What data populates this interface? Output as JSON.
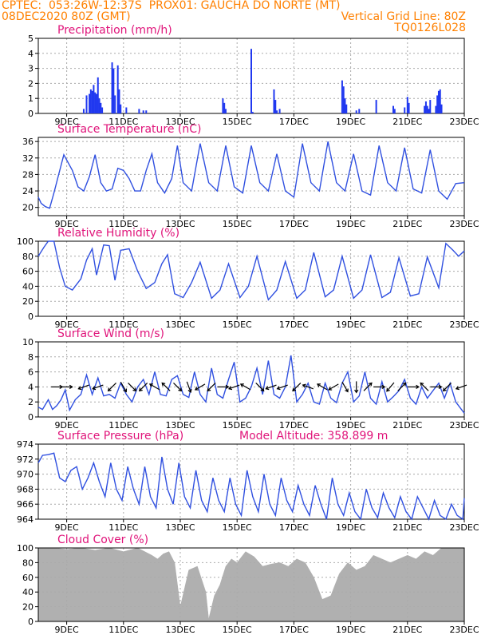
{
  "header": {
    "line1_left": "CPTEC:  053:26W-12:37S  PROX01: GAUCHA DO NORTE (MT)",
    "line2_left": "08DEC2020 80Z (GMT)",
    "line2_right": "Vertical Grid Line: 80Z",
    "line3_right": "TQ0126L028"
  },
  "colors": {
    "header": "#ff8000",
    "title": "#e0147a",
    "line": "#3050e0",
    "bar": "#2038f0",
    "cloud": "#b0b0b0",
    "grid": "#aaaaaa"
  },
  "x_axis": {
    "start": "2020-12-08T08:00Z",
    "end": "2020-12-23T00:00Z",
    "tick_labels": [
      "9DEC",
      "11DEC",
      "13DEC",
      "15DEC",
      "17DEC",
      "19DEC",
      "21DEC",
      "23DEC"
    ],
    "tick_days": [
      1,
      3,
      5,
      7,
      9,
      11,
      13,
      15
    ]
  },
  "chart_data": [
    {
      "id": "precip",
      "type": "bar",
      "title": "Precipitation (mm/h)",
      "ylim": [
        0,
        5
      ],
      "yticks": [
        0,
        1,
        2,
        3,
        4,
        5
      ],
      "x_days": [
        1.6,
        1.7,
        1.8,
        1.85,
        1.9,
        1.95,
        2.0,
        2.05,
        2.1,
        2.15,
        2.2,
        2.25,
        2.6,
        2.65,
        2.7,
        2.8,
        2.85,
        2.9,
        3.1,
        3.55,
        3.7,
        3.8,
        6.5,
        6.55,
        6.6,
        7.5,
        7.55,
        8.3,
        8.35,
        8.4,
        8.5,
        10.7,
        10.75,
        10.8,
        10.85,
        11.2,
        11.3,
        11.9,
        12.5,
        12.55,
        12.9,
        13.0,
        13.05,
        13.6,
        13.65,
        13.7,
        13.75,
        13.8,
        14.0,
        14.05,
        14.1,
        14.15,
        14.2
      ],
      "values": [
        0.3,
        1.2,
        1.3,
        1.6,
        1.5,
        1.9,
        1.4,
        1.3,
        2.4,
        1.0,
        0.7,
        0.4,
        3.4,
        3.0,
        1.2,
        3.2,
        1.6,
        0.6,
        0.4,
        0.3,
        0.2,
        0.2,
        1.0,
        0.7,
        0.3,
        4.3,
        0.1,
        1.6,
        0.9,
        0.2,
        0.3,
        2.2,
        1.8,
        1.0,
        0.6,
        0.2,
        0.3,
        0.9,
        0.5,
        0.3,
        0.4,
        1.1,
        0.7,
        0.5,
        0.8,
        0.5,
        0.3,
        0.9,
        0.5,
        1.2,
        1.5,
        1.6,
        0.6
      ]
    },
    {
      "id": "temp",
      "type": "line",
      "title": "Surface Temperature (nC)",
      "ylim": [
        18,
        37
      ],
      "yticks": [
        20,
        24,
        28,
        32,
        36
      ],
      "x_days": [
        0,
        0.1,
        0.25,
        0.4,
        0.55,
        0.7,
        0.9,
        1.2,
        1.4,
        1.6,
        1.8,
        2.0,
        2.2,
        2.4,
        2.6,
        2.8,
        3.0,
        3.2,
        3.4,
        3.6,
        3.8,
        4.0,
        4.2,
        4.45,
        4.7,
        4.9,
        5.1,
        5.4,
        5.7,
        6.0,
        6.3,
        6.6,
        6.9,
        7.2,
        7.5,
        7.8,
        8.1,
        8.4,
        8.7,
        9.0,
        9.3,
        9.6,
        9.9,
        10.2,
        10.5,
        10.8,
        11.1,
        11.4,
        11.7,
        12.0,
        12.3,
        12.6,
        12.9,
        13.2,
        13.5,
        13.8,
        14.1,
        14.4,
        14.7,
        15.0
      ],
      "values": [
        22.5,
        21.0,
        20.2,
        19.8,
        23.5,
        27.5,
        32.8,
        29.0,
        25.0,
        24.0,
        27.5,
        32.8,
        26.0,
        24.0,
        24.5,
        29.5,
        29.0,
        27.0,
        24.0,
        24.0,
        29.0,
        33.0,
        26.0,
        23.5,
        27.0,
        35.0,
        26.0,
        24.0,
        35.5,
        26.0,
        24.0,
        35.0,
        25.0,
        23.5,
        35.0,
        26.0,
        24.0,
        33.0,
        24.0,
        22.5,
        35.5,
        26.0,
        24.0,
        36.0,
        26.0,
        24.0,
        33.0,
        24.0,
        23.0,
        35.0,
        26.0,
        24.0,
        34.5,
        24.5,
        23.5,
        34.0,
        24.0,
        22.0,
        25.8,
        26.0
      ]
    },
    {
      "id": "rh",
      "type": "line",
      "title": "Relative Humidity (%)",
      "ylim": [
        0,
        100
      ],
      "yticks": [
        0,
        20,
        40,
        60,
        80,
        100
      ],
      "x_days": [
        0,
        0.2,
        0.35,
        0.55,
        0.75,
        0.95,
        1.2,
        1.5,
        1.7,
        1.9,
        2.05,
        2.3,
        2.5,
        2.7,
        2.9,
        3.2,
        3.5,
        3.8,
        4.1,
        4.35,
        4.55,
        4.8,
        5.1,
        5.4,
        5.7,
        6.1,
        6.4,
        6.7,
        7.1,
        7.4,
        7.7,
        8.1,
        8.4,
        8.7,
        9.1,
        9.4,
        9.7,
        10.1,
        10.4,
        10.7,
        11.1,
        11.4,
        11.7,
        12.1,
        12.4,
        12.7,
        13.1,
        13.4,
        13.7,
        14.1,
        14.35,
        14.6,
        14.8,
        15.0
      ],
      "values": [
        80,
        92,
        100,
        100,
        65,
        40,
        35,
        50,
        75,
        90,
        55,
        95,
        94,
        48,
        88,
        90,
        60,
        37,
        45,
        70,
        82,
        30,
        25,
        45,
        72,
        24,
        35,
        70,
        25,
        40,
        80,
        22,
        35,
        73,
        24,
        35,
        85,
        26,
        35,
        80,
        24,
        35,
        82,
        25,
        32,
        78,
        27,
        30,
        79,
        38,
        97,
        88,
        80,
        87
      ]
    },
    {
      "id": "wind",
      "type": "line",
      "title": "Surface Wind (m/s)",
      "ylim": [
        0,
        10
      ],
      "yticks": [
        0,
        2,
        4,
        6,
        8,
        10
      ],
      "x_days": [
        0,
        0.15,
        0.35,
        0.5,
        0.65,
        0.8,
        0.95,
        1.1,
        1.3,
        1.5,
        1.7,
        1.9,
        2.1,
        2.3,
        2.5,
        2.7,
        2.9,
        3.1,
        3.3,
        3.5,
        3.7,
        3.9,
        4.1,
        4.3,
        4.5,
        4.7,
        4.9,
        5.1,
        5.3,
        5.5,
        5.7,
        5.9,
        6.1,
        6.3,
        6.5,
        6.7,
        6.9,
        7.1,
        7.3,
        7.5,
        7.7,
        7.9,
        8.1,
        8.3,
        8.5,
        8.7,
        8.9,
        9.1,
        9.3,
        9.5,
        9.7,
        9.9,
        10.1,
        10.3,
        10.5,
        10.7,
        10.9,
        11.1,
        11.3,
        11.5,
        11.7,
        11.9,
        12.1,
        12.3,
        12.5,
        12.7,
        12.9,
        13.1,
        13.3,
        13.5,
        13.7,
        13.9,
        14.1,
        14.3,
        14.5,
        14.7,
        14.9,
        15.0
      ],
      "values": [
        1.3,
        1.0,
        2.3,
        1.0,
        1.5,
        2.3,
        3.6,
        0.9,
        2.3,
        3.0,
        5.6,
        3.0,
        5.2,
        2.8,
        3.0,
        2.5,
        4.5,
        3.0,
        2.0,
        4.0,
        5.0,
        3.0,
        6.0,
        3.0,
        2.8,
        5.0,
        5.5,
        3.0,
        2.6,
        6.0,
        3.0,
        2.0,
        6.5,
        3.0,
        2.5,
        5.0,
        7.3,
        2.0,
        2.5,
        4.0,
        6.5,
        3.0,
        7.5,
        3.0,
        2.5,
        4.0,
        8.2,
        2.0,
        3.0,
        4.5,
        2.0,
        1.7,
        4.5,
        2.5,
        1.9,
        4.5,
        6.0,
        2.0,
        2.8,
        6.0,
        2.5,
        1.7,
        4.7,
        2.0,
        2.7,
        3.5,
        5.0,
        2.5,
        1.7,
        4.0,
        2.5,
        3.5,
        4.5,
        2.5,
        4.5,
        2.0,
        1.0,
        0.5
      ],
      "arrow_days": [
        0.65,
        1.0,
        1.6,
        2.1,
        2.6,
        3.0,
        3.3,
        3.7,
        4.1,
        4.5,
        4.9,
        5.3,
        5.7,
        6.1,
        6.5,
        6.9,
        7.3,
        7.8,
        8.2,
        8.6,
        9.1,
        9.5,
        10.0,
        10.4,
        10.8,
        11.2,
        11.6,
        12.0,
        12.4,
        12.8,
        13.2,
        13.6,
        14.0,
        14.4,
        14.9
      ],
      "arrow_angles": [
        0,
        0,
        200,
        200,
        225,
        300,
        315,
        225,
        150,
        135,
        315,
        290,
        210,
        225,
        0,
        200,
        150,
        315,
        200,
        200,
        225,
        160,
        150,
        210,
        300,
        270,
        45,
        0,
        230,
        45,
        0,
        135,
        0,
        225,
        200
      ]
    },
    {
      "id": "pres",
      "type": "line",
      "title": "Surface Pressure (hPa)",
      "subtitle": "Model Altitude: 358.899  m",
      "ylim": [
        964,
        974
      ],
      "yticks": [
        964,
        966,
        968,
        970,
        972,
        974
      ],
      "x_days": [
        0,
        0.15,
        0.35,
        0.55,
        0.75,
        0.95,
        1.15,
        1.35,
        1.55,
        1.75,
        1.95,
        2.15,
        2.35,
        2.55,
        2.75,
        2.95,
        3.15,
        3.35,
        3.55,
        3.75,
        3.95,
        4.15,
        4.35,
        4.55,
        4.75,
        4.95,
        5.15,
        5.35,
        5.55,
        5.75,
        5.95,
        6.15,
        6.35,
        6.55,
        6.75,
        6.95,
        7.15,
        7.35,
        7.55,
        7.75,
        7.95,
        8.15,
        8.35,
        8.55,
        8.75,
        8.95,
        9.15,
        9.35,
        9.55,
        9.75,
        9.95,
        10.15,
        10.35,
        10.55,
        10.75,
        10.95,
        11.15,
        11.35,
        11.55,
        11.75,
        11.95,
        12.15,
        12.35,
        12.55,
        12.75,
        12.95,
        13.15,
        13.35,
        13.55,
        13.75,
        13.95,
        14.15,
        14.35,
        14.55,
        14.75,
        14.95,
        15.0
      ],
      "values": [
        971.5,
        972.5,
        972.6,
        972.8,
        969.5,
        969.0,
        970.5,
        971.0,
        968.0,
        969.5,
        971.5,
        969.0,
        967.0,
        971.5,
        968.0,
        966.5,
        971.0,
        968.0,
        966.0,
        971.0,
        967.0,
        965.5,
        972.3,
        968.0,
        966.0,
        971.5,
        967.0,
        965.5,
        970.5,
        966.5,
        965.0,
        969.5,
        966.5,
        965.0,
        969.5,
        966.0,
        964.5,
        970.5,
        967.0,
        965.0,
        970.0,
        966.0,
        964.5,
        969.5,
        966.5,
        965.0,
        968.5,
        966.0,
        964.5,
        968.5,
        966.0,
        964.0,
        969.5,
        966.0,
        964.5,
        967.5,
        965.0,
        964.0,
        968.0,
        965.5,
        964.2,
        967.5,
        965.5,
        964.2,
        967.0,
        965.0,
        964.0,
        967.0,
        965.5,
        964.0,
        966.5,
        964.5,
        964.0,
        966.0,
        964.5,
        964.0,
        966.8
      ]
    },
    {
      "id": "cloud",
      "type": "area",
      "title": "Cloud Cover (%)",
      "ylim": [
        0,
        100
      ],
      "yticks": [
        0,
        20,
        40,
        60,
        80,
        100
      ],
      "x_days": [
        0,
        0.5,
        1.0,
        1.5,
        2.0,
        2.5,
        3.0,
        3.5,
        4.0,
        4.2,
        4.4,
        4.6,
        4.8,
        5.0,
        5.3,
        5.6,
        5.9,
        6.0,
        6.2,
        6.4,
        6.6,
        6.8,
        7.0,
        7.3,
        7.6,
        7.9,
        8.2,
        8.5,
        8.8,
        9.1,
        9.4,
        9.7,
        10.0,
        10.3,
        10.6,
        10.9,
        11.2,
        11.5,
        11.8,
        12.1,
        12.4,
        12.7,
        13.0,
        13.3,
        13.6,
        13.9,
        14.2,
        14.5,
        15.0
      ],
      "values": [
        100,
        100,
        98,
        100,
        97,
        100,
        95,
        100,
        90,
        85,
        92,
        95,
        80,
        20,
        70,
        75,
        40,
        3,
        35,
        50,
        75,
        85,
        80,
        95,
        88,
        75,
        78,
        80,
        75,
        85,
        80,
        60,
        30,
        35,
        65,
        80,
        70,
        75,
        90,
        85,
        80,
        85,
        90,
        85,
        95,
        90,
        100,
        100,
        100
      ]
    }
  ]
}
